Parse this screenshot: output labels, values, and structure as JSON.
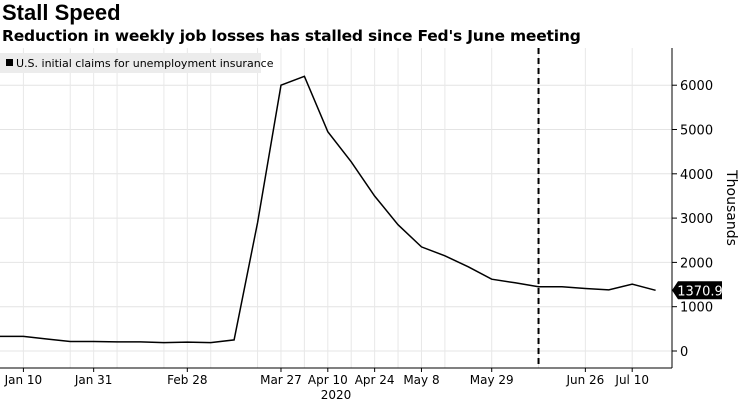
{
  "title": "Stall Speed",
  "subtitle": "Reduction in weekly job losses has stalled since Fed's June meeting",
  "chart_data": {
    "type": "line",
    "legend": {
      "label": "U.S. initial claims for unemployment insurance",
      "placement": "top-left"
    },
    "ylabel": "Thousands",
    "ylim": [
      -384,
      6840
    ],
    "yticks": [
      0,
      1000,
      2000,
      3000,
      4000,
      5000,
      6000
    ],
    "xtick_labels": [
      {
        "label": "Jan 10",
        "week": 1
      },
      {
        "label": "Jan 31",
        "week": 4
      },
      {
        "label": "Feb 28",
        "week": 8
      },
      {
        "label": "Mar 27",
        "week": 12
      },
      {
        "label": "Apr 10",
        "week": 14
      },
      {
        "label": "Apr 24",
        "week": 16
      },
      {
        "label": "May 8",
        "week": 18
      },
      {
        "label": "May 29",
        "week": 21
      },
      {
        "label": "Jun 26",
        "week": 25
      },
      {
        "label": "Jul 10",
        "week": 27
      }
    ],
    "year_label": "2020",
    "x_weeks_range": [
      0,
      28.7
    ],
    "series": [
      {
        "name": "U.S. initial claims for unemployment insurance",
        "color": "#000000",
        "x": [
          "Jan 3",
          "Jan 10",
          "Jan 17",
          "Jan 24",
          "Jan 31",
          "Feb 7",
          "Feb 14",
          "Feb 21",
          "Feb 28",
          "Mar 6",
          "Mar 13",
          "Mar 20",
          "Mar 27",
          "Apr 3",
          "Apr 10",
          "Apr 17",
          "Apr 24",
          "May 1",
          "May 8",
          "May 15",
          "May 22",
          "May 29",
          "Jun 5",
          "Jun 12",
          "Jun 19",
          "Jun 26",
          "Jul 3",
          "Jul 10",
          "Jul 17"
        ],
        "values": [
          330,
          330,
          270,
          215,
          215,
          205,
          205,
          190,
          200,
          190,
          250,
          2900,
          6000,
          6200,
          4950,
          4270,
          3500,
          2850,
          2350,
          2150,
          1900,
          1620,
          1540,
          1450,
          1450,
          1410,
          1380,
          1510,
          1370.9
        ]
      }
    ],
    "last_value_label": "1370.9",
    "annotation_vline_week": 23,
    "grid": true
  }
}
